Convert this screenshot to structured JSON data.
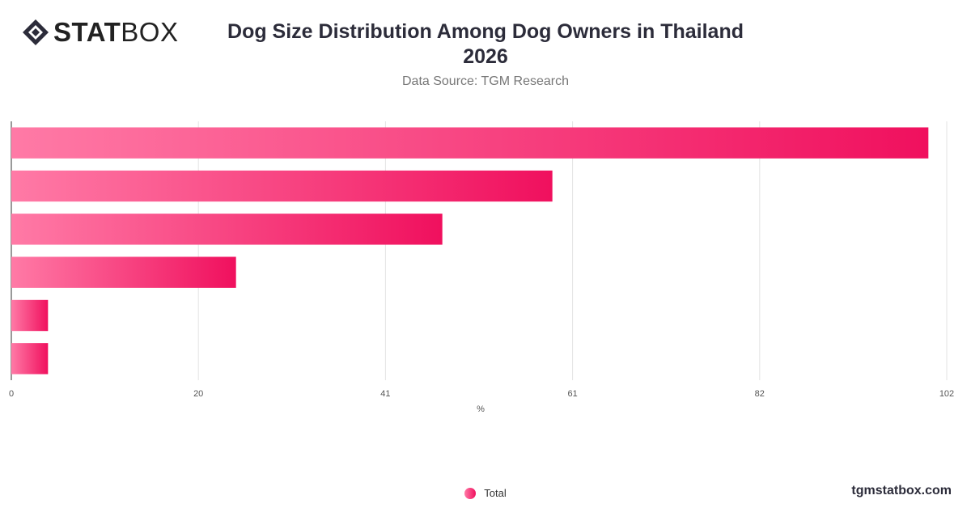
{
  "brand": {
    "logo_bold": "STAT",
    "logo_light": "BOX",
    "site": "tgmstatbox.com"
  },
  "chart_data": {
    "type": "bar",
    "orientation": "horizontal",
    "title_line1": "Dog Size Distribution Among Dog Owners in Thailand",
    "title_line2": "2026",
    "subtitle": "Data Source: TGM Research",
    "xlabel": "%",
    "xlim": [
      0,
      102
    ],
    "ticks": [
      "0",
      "20",
      "41",
      "61",
      "82",
      "102"
    ],
    "tick_values": [
      0,
      20.4,
      40.8,
      61.2,
      81.6,
      102
    ],
    "categories": [
      "",
      "",
      "",
      "",
      "",
      ""
    ],
    "series": [
      {
        "name": "Total",
        "values": [
          100,
          59,
          47,
          24.5,
          4,
          4
        ]
      }
    ],
    "legend": "bottom-center",
    "grid": true,
    "colors": {
      "bar_start": "#ff7aa6",
      "bar_end": "#f0105e",
      "grid": "#e3e3e3",
      "axis": "#333333"
    }
  }
}
